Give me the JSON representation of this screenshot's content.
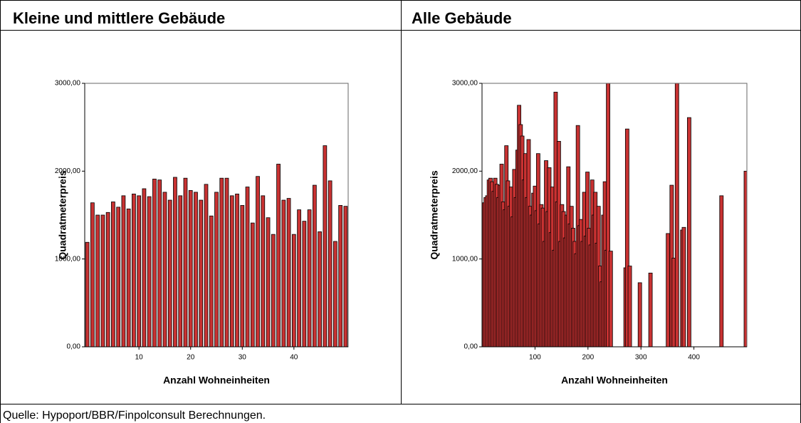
{
  "chart_data": [
    {
      "type": "bar",
      "title": "Kleine und mittlere Gebäude",
      "x_label": "Anzahl Wohneinheiten",
      "y_label": "Quadratmeterpreis",
      "color": "#c83232",
      "x": [
        0,
        1,
        2,
        3,
        4,
        5,
        6,
        7,
        8,
        9,
        10,
        11,
        12,
        13,
        14,
        15,
        16,
        17,
        18,
        19,
        20,
        21,
        22,
        23,
        24,
        25,
        26,
        27,
        28,
        29,
        30,
        31,
        32,
        33,
        34,
        35,
        36,
        37,
        38,
        39,
        40,
        41,
        42,
        43,
        44,
        45,
        46,
        47,
        48,
        49,
        50
      ],
      "values": [
        1190,
        1640,
        1500,
        1500,
        1530,
        1650,
        1590,
        1720,
        1570,
        1740,
        1720,
        1800,
        1710,
        1910,
        1900,
        1760,
        1670,
        1930,
        1720,
        1920,
        1780,
        1760,
        1670,
        1850,
        1490,
        1760,
        1920,
        1920,
        1720,
        1740,
        1610,
        1820,
        1410,
        1940,
        1720,
        1470,
        1280,
        2080,
        1670,
        1690,
        1280,
        1560,
        1430,
        1560,
        1840,
        1310,
        2290,
        1890,
        1200,
        1610,
        1600
      ],
      "xlim": [
        -0.5,
        50.5
      ],
      "xticks": [
        10,
        20,
        30,
        40
      ],
      "ylim": [
        0,
        3000
      ],
      "yticks": [
        {
          "value": 0,
          "label": "0,00"
        },
        {
          "value": 1000,
          "label": "1000,00"
        },
        {
          "value": 2000,
          "label": "2000,00"
        },
        {
          "value": 3000,
          "label": "3000,00"
        }
      ]
    },
    {
      "type": "bar",
      "title": "Alle Gebäude",
      "x_label": "Anzahl Wohneinheiten",
      "y_label": "Quadratmeterpreis",
      "color": "#c83232",
      "x": [
        1,
        4,
        7,
        10,
        13,
        16,
        19,
        22,
        25,
        28,
        31,
        34,
        37,
        40,
        43,
        46,
        49,
        52,
        55,
        58,
        61,
        64,
        67,
        70,
        73,
        76,
        79,
        82,
        85,
        88,
        91,
        94,
        97,
        100,
        103,
        106,
        109,
        112,
        115,
        118,
        121,
        124,
        127,
        130,
        133,
        136,
        139,
        142,
        145,
        148,
        151,
        154,
        157,
        160,
        163,
        166,
        169,
        172,
        175,
        178,
        181,
        184,
        187,
        190,
        193,
        196,
        199,
        202,
        205,
        208,
        211,
        214,
        217,
        220,
        223,
        226,
        229,
        232,
        235,
        238,
        243,
        271,
        274,
        279,
        298,
        318,
        351,
        358,
        362,
        368,
        378,
        381,
        391,
        452,
        498
      ],
      "values": [
        1190,
        1640,
        1700,
        1720,
        1900,
        1920,
        1880,
        1770,
        1920,
        1850,
        1700,
        1840,
        2080,
        1650,
        1560,
        2290,
        1890,
        1600,
        1820,
        1480,
        2020,
        1700,
        2240,
        2750,
        2530,
        2400,
        1900,
        2200,
        1700,
        2360,
        1600,
        1500,
        1750,
        1830,
        1550,
        2200,
        1400,
        1620,
        1580,
        1200,
        2120,
        1540,
        2040,
        1300,
        1820,
        1100,
        2900,
        1650,
        2340,
        1200,
        1620,
        1540,
        1240,
        1500,
        2050,
        1400,
        1600,
        1350,
        1200,
        1060,
        2520,
        1380,
        1450,
        1200,
        1760,
        1260,
        1990,
        1350,
        1160,
        1900,
        1500,
        1760,
        1180,
        1600,
        920,
        740,
        1500,
        1880,
        1100,
        3000,
        1090,
        900,
        2480,
        920,
        730,
        840,
        1290,
        1840,
        1010,
        3000,
        1330,
        1360,
        2610,
        1720,
        2000
      ],
      "xlim": [
        0,
        500
      ],
      "xticks": [
        100,
        200,
        300,
        400
      ],
      "ylim": [
        0,
        3000
      ],
      "yticks": [
        {
          "value": 0,
          "label": "0,00"
        },
        {
          "value": 1000,
          "label": "1000,00"
        },
        {
          "value": 2000,
          "label": "2000,00"
        },
        {
          "value": 3000,
          "label": "3000,00"
        }
      ]
    }
  ],
  "source": "Quelle: Hypoport/BBR/Finpolconsult Berechnungen."
}
